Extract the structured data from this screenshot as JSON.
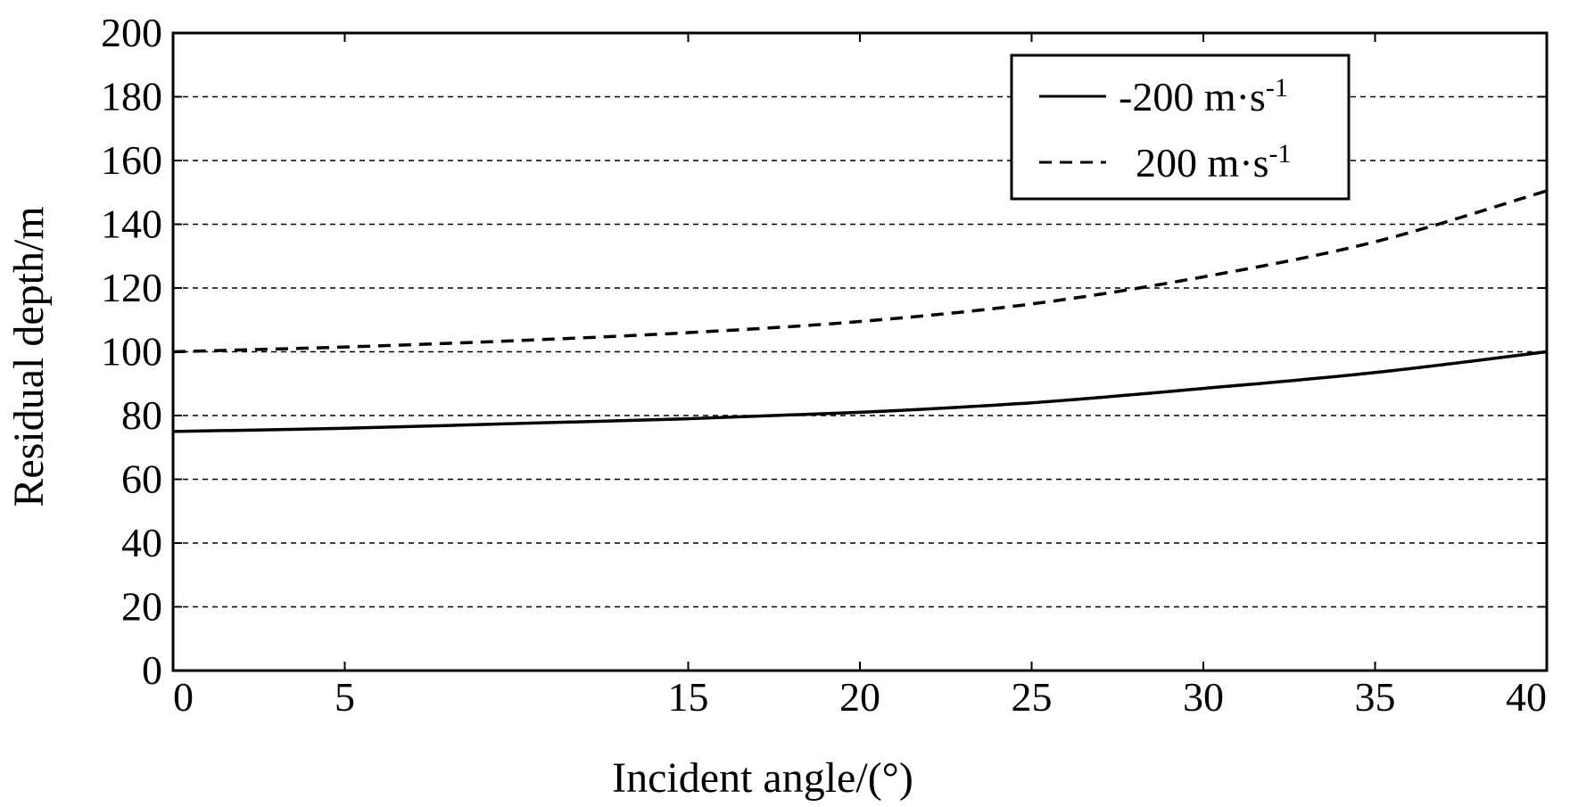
{
  "chart_data": {
    "type": "line",
    "xlabel": "Incident angle/(°)",
    "ylabel": "Residual depth/m",
    "xlim": [
      0,
      40
    ],
    "ylim": [
      0,
      200
    ],
    "x_ticks": [
      0,
      5,
      15,
      20,
      25,
      30,
      35,
      40
    ],
    "x_tick_labels": [
      "0",
      "5",
      "15",
      "20",
      "25",
      "30",
      "35",
      "40"
    ],
    "y_ticks": [
      0,
      20,
      40,
      60,
      80,
      100,
      120,
      140,
      160,
      180,
      200
    ],
    "y_tick_labels": [
      "0",
      "20",
      "40",
      "60",
      "80",
      "100",
      "120",
      "140",
      "160",
      "180",
      "200"
    ],
    "grid": "horizontal dashed",
    "legend_position": "top-right",
    "series": [
      {
        "name": "-200 m·s",
        "superscript": "-1",
        "style": "solid",
        "color": "#000000",
        "x": [
          0,
          5,
          10,
          15,
          20,
          25,
          30,
          35,
          40
        ],
        "y": [
          75,
          76,
          77.5,
          79,
          81,
          84,
          88.5,
          93.5,
          100
        ]
      },
      {
        "name": "200 m·s",
        "superscript": "-1",
        "style": "dashed",
        "color": "#000000",
        "x": [
          0,
          5,
          10,
          15,
          20,
          25,
          30,
          35,
          40
        ],
        "y": [
          100,
          101.5,
          103.5,
          106,
          109.5,
          115,
          123.5,
          134.5,
          150.5
        ]
      }
    ]
  }
}
